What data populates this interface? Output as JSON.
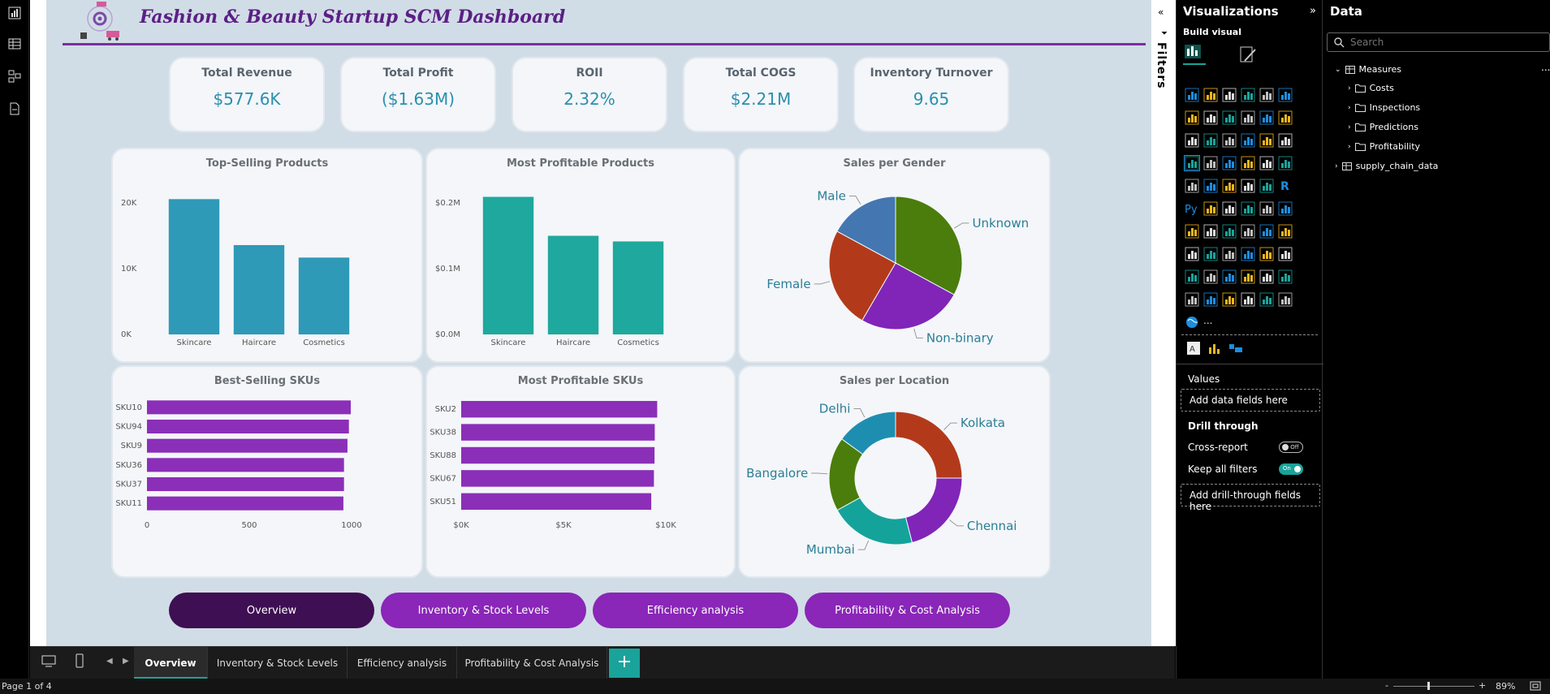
{
  "dashboard": {
    "title": "Fashion & Beauty Startup SCM Dashboard",
    "kpis": [
      {
        "label": "Total Revenue",
        "value": "$577.6K"
      },
      {
        "label": "Total Profit",
        "value": "($1.63M)"
      },
      {
        "label": "ROII",
        "value": "2.32%"
      },
      {
        "label": "Total COGS",
        "value": "$2.21M"
      },
      {
        "label": "Inventory Turnover",
        "value": "9.65"
      }
    ],
    "nav_buttons": [
      "Overview",
      "Inventory & Stock Levels",
      "Efficiency analysis",
      "Profitability & Cost Analysis"
    ]
  },
  "chart_data": [
    {
      "type": "bar",
      "title": "Top-Selling Products",
      "categories": [
        "Skincare",
        "Haircare",
        "Cosmetics"
      ],
      "values": [
        20600,
        13600,
        11700
      ],
      "yticks": [
        "0K",
        "10K",
        "20K"
      ],
      "ylim": [
        0,
        22000
      ],
      "color": "#2e9ab8"
    },
    {
      "type": "bar",
      "title": "Most Profitable Products",
      "categories": [
        "Skincare",
        "Haircare",
        "Cosmetics"
      ],
      "values": [
        0.219,
        0.157,
        0.148
      ],
      "yticks": [
        "$0.0M",
        "$0.1M",
        "$0.2M"
      ],
      "ylim": [
        0,
        0.23
      ],
      "color": "#1fa89d"
    },
    {
      "type": "pie",
      "title": "Sales per Gender",
      "labels": [
        "Unknown",
        "Non-binary",
        "Female",
        "Male"
      ],
      "values": [
        32.9,
        25.5,
        24.5,
        17.1
      ],
      "colors": [
        "#4a7d0c",
        "#8025b8",
        "#b23a1a",
        "#4476b1"
      ]
    },
    {
      "type": "bar",
      "orientation": "horizontal",
      "title": "Best-Selling SKUs",
      "categories": [
        "SKU10",
        "SKU94",
        "SKU9",
        "SKU36",
        "SKU37",
        "SKU11"
      ],
      "values": [
        996,
        987,
        980,
        963,
        963,
        960
      ],
      "xticks": [
        "0",
        "500",
        "1000"
      ],
      "xlim": [
        0,
        1000
      ],
      "color": "#8b2fb8"
    },
    {
      "type": "bar",
      "orientation": "horizontal",
      "title": "Most Profitable SKUs",
      "categories": [
        "SKU2",
        "SKU38",
        "SKU88",
        "SKU67",
        "SKU51"
      ],
      "values": [
        9580,
        9460,
        9450,
        9420,
        9290
      ],
      "xticks": [
        "$0K",
        "$5K",
        "$10K"
      ],
      "xlim": [
        0,
        10000
      ],
      "color": "#8b2fb8"
    },
    {
      "type": "donut",
      "title": "Sales per Location",
      "labels": [
        "Kolkata",
        "Chennai",
        "Mumbai",
        "Bangalore",
        "Delhi"
      ],
      "values": [
        25,
        21,
        21,
        18,
        15
      ],
      "colors": [
        "#b23a1a",
        "#8025b8",
        "#14a39a",
        "#4a7d0c",
        "#1e8eb0"
      ]
    }
  ],
  "page_tabs": {
    "tabs": [
      "Overview",
      "Inventory & Stock Levels",
      "Efficiency analysis",
      "Profitability & Cost Analysis"
    ],
    "add_label": "+"
  },
  "status": {
    "page": "Page 1 of 4",
    "zoom": "89%",
    "zoom_minus": "-",
    "zoom_plus": "+"
  },
  "filters": {
    "label": "Filters"
  },
  "viz_pane": {
    "title": "Visualizations",
    "build": "Build visual",
    "values_label": "Values",
    "values_drop": "Add data fields here",
    "drill_label": "Drill through",
    "cross_report": "Cross-report",
    "cross_report_state": "Off",
    "keep_filters": "Keep all filters",
    "keep_filters_state": "On",
    "drill_drop": "Add drill-through fields here",
    "py_label": "Py",
    "r_label": "R",
    "more_label": "..."
  },
  "data_pane": {
    "title": "Data",
    "search_placeholder": "Search",
    "tree": [
      {
        "label": "Measures",
        "level": 0
      },
      {
        "label": "Costs",
        "level": 1
      },
      {
        "label": "Inspections",
        "level": 1
      },
      {
        "label": "Predictions",
        "level": 1
      },
      {
        "label": "Profitability",
        "level": 1
      },
      {
        "label": "supply_chain_data",
        "level": 0
      }
    ],
    "more_label": "..."
  },
  "colors": {
    "accent": "#1aa39a",
    "nav_active": "#3e0f52",
    "nav": "#8a26b8",
    "title": "#5b1f86"
  }
}
